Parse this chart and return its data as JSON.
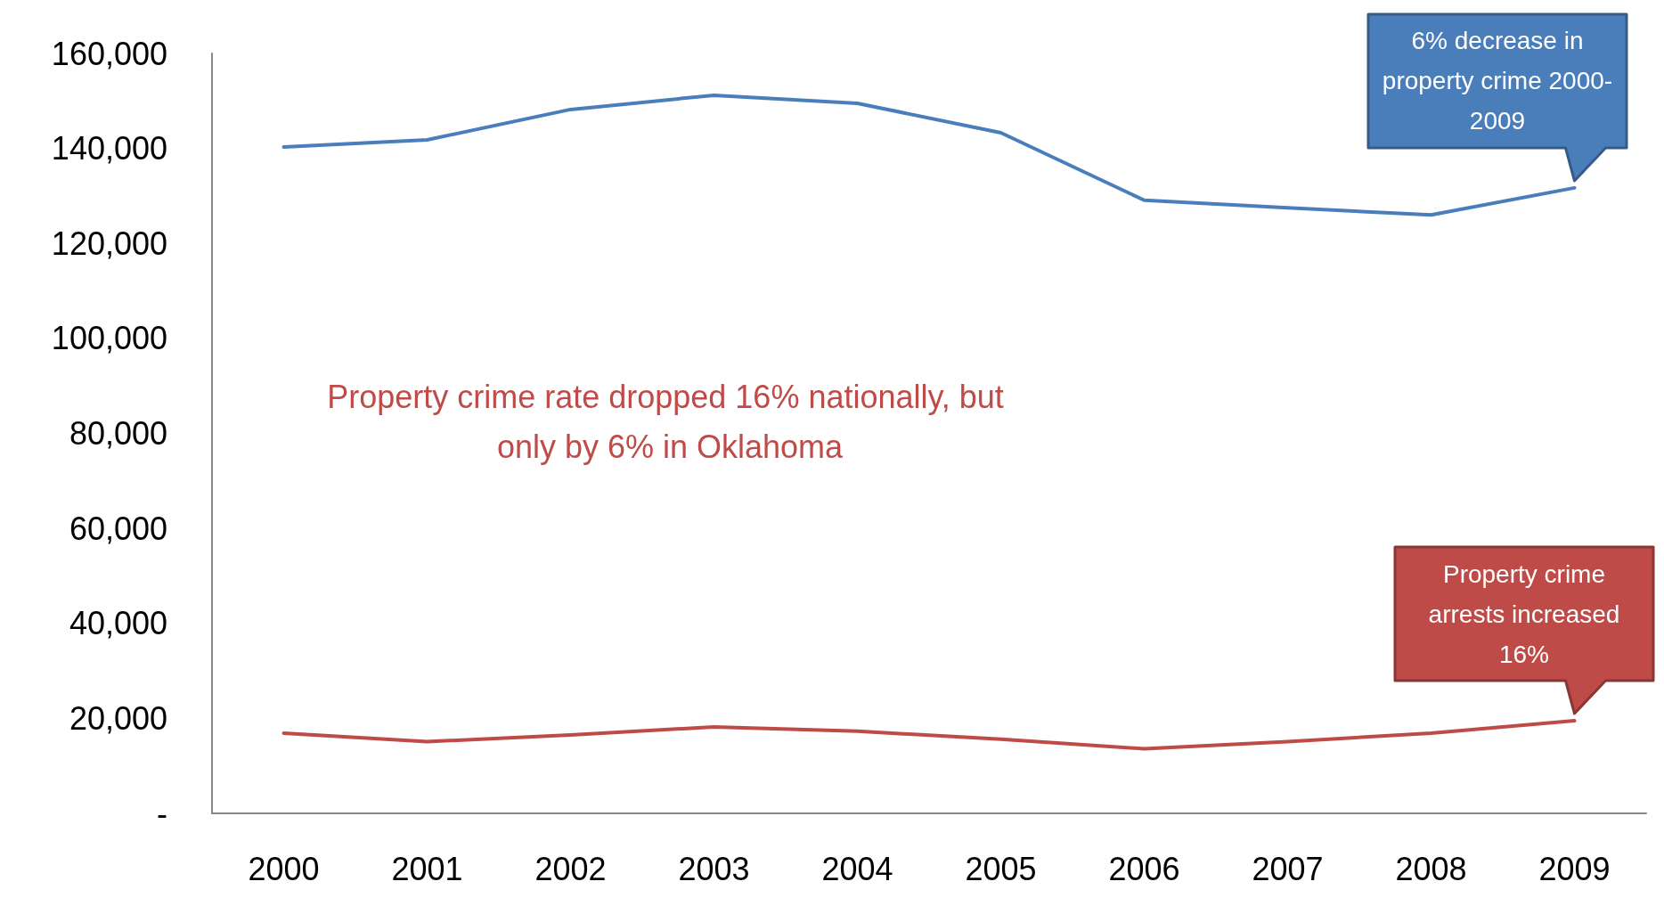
{
  "chart_data": {
    "type": "line",
    "categories": [
      "2000",
      "2001",
      "2002",
      "2003",
      "2004",
      "2005",
      "2006",
      "2007",
      "2008",
      "2009"
    ],
    "series": [
      {
        "color": "#4a7ebb",
        "values": [
          140300,
          141800,
          148200,
          151200,
          149500,
          143300,
          129100,
          127500,
          126000,
          131700
        ]
      },
      {
        "color": "#be4b48",
        "values": [
          16900,
          15100,
          16500,
          18200,
          17300,
          15600,
          13600,
          15100,
          16900,
          19500
        ]
      }
    ],
    "ylim": [
      0,
      160000
    ],
    "yticks": [
      {
        "value": 0,
        "label": "-"
      },
      {
        "value": 20000,
        "label": "20,000"
      },
      {
        "value": 40000,
        "label": "40,000"
      },
      {
        "value": 60000,
        "label": "60,000"
      },
      {
        "value": 80000,
        "label": "80,000"
      },
      {
        "value": 100000,
        "label": "100,000"
      },
      {
        "value": 120000,
        "label": "120,000"
      },
      {
        "value": 140000,
        "label": "140,000"
      },
      {
        "value": 160000,
        "label": "160,000"
      }
    ],
    "annotations": [
      {
        "text": "6% decrease in property crime 2000-2009",
        "x": "2009",
        "y": 131700
      },
      {
        "text": "Property crime arrests increased 16%",
        "x": "2009",
        "y": 19500
      },
      "Property crime rate dropped 16% nationally, but only by 6% in Oklahoma"
    ],
    "grid": false,
    "marker": "none",
    "line_style": "solid"
  }
}
